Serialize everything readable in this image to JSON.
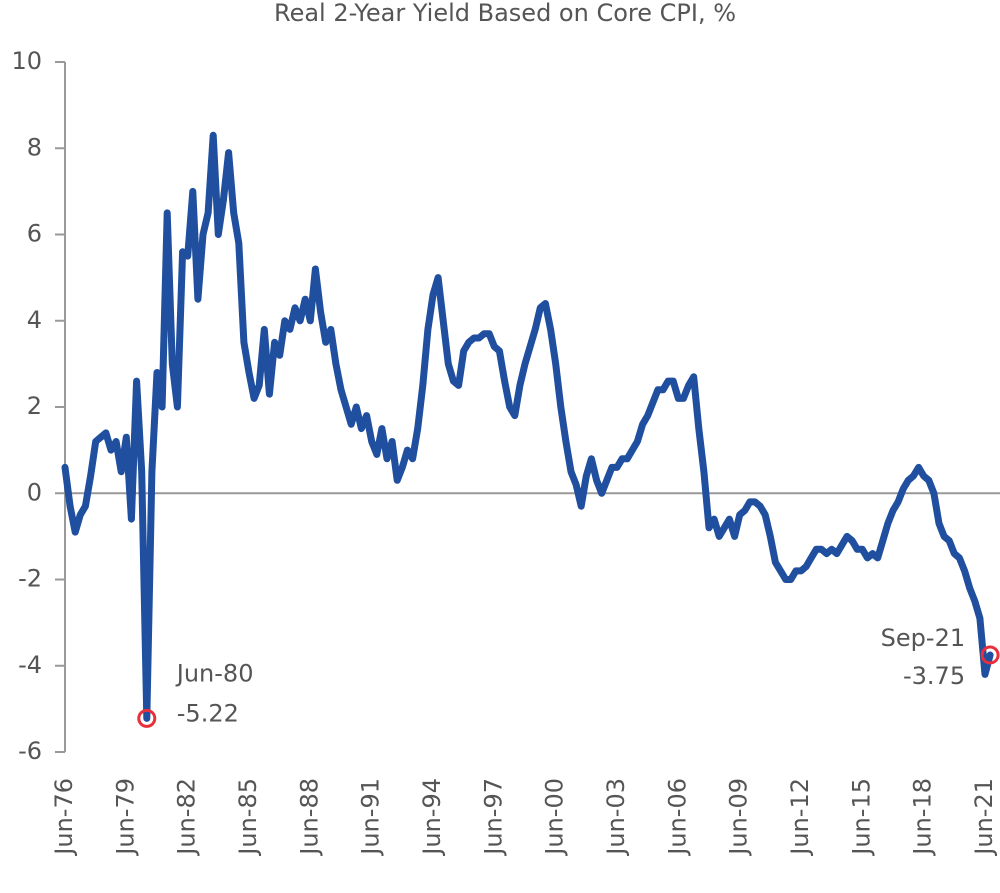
{
  "chart_data": {
    "type": "line",
    "title": "Real 2-Year Yield Based on Core CPI, %",
    "x": [
      "Jun-76",
      "Sep-76",
      "Dec-76",
      "Mar-77",
      "Jun-77",
      "Sep-77",
      "Dec-77",
      "Mar-78",
      "Jun-78",
      "Sep-78",
      "Dec-78",
      "Mar-79",
      "Jun-79",
      "Sep-79",
      "Dec-79",
      "Mar-80",
      "Jun-80",
      "Sep-80",
      "Dec-80",
      "Mar-81",
      "Jun-81",
      "Sep-81",
      "Dec-81",
      "Mar-82",
      "Jun-82",
      "Sep-82",
      "Dec-82",
      "Mar-83",
      "Jun-83",
      "Sep-83",
      "Dec-83",
      "Mar-84",
      "Jun-84",
      "Sep-84",
      "Dec-84",
      "Mar-85",
      "Jun-85",
      "Sep-85",
      "Dec-85",
      "Mar-86",
      "Jun-86",
      "Sep-86",
      "Dec-86",
      "Mar-87",
      "Jun-87",
      "Sep-87",
      "Dec-87",
      "Mar-88",
      "Jun-88",
      "Sep-88",
      "Dec-88",
      "Mar-89",
      "Jun-89",
      "Sep-89",
      "Dec-89",
      "Mar-90",
      "Jun-90",
      "Sep-90",
      "Dec-90",
      "Mar-91",
      "Jun-91",
      "Sep-91",
      "Dec-91",
      "Mar-92",
      "Jun-92",
      "Sep-92",
      "Dec-92",
      "Mar-93",
      "Jun-93",
      "Sep-93",
      "Dec-93",
      "Mar-94",
      "Jun-94",
      "Sep-94",
      "Dec-94",
      "Mar-95",
      "Jun-95",
      "Sep-95",
      "Dec-95",
      "Mar-96",
      "Jun-96",
      "Sep-96",
      "Dec-96",
      "Mar-97",
      "Jun-97",
      "Sep-97",
      "Dec-97",
      "Mar-98",
      "Jun-98",
      "Sep-98",
      "Dec-98",
      "Mar-99",
      "Jun-99",
      "Sep-99",
      "Dec-99",
      "Mar-00",
      "Jun-00",
      "Sep-00",
      "Dec-00",
      "Mar-01",
      "Jun-01",
      "Sep-01",
      "Dec-01",
      "Mar-02",
      "Jun-02",
      "Sep-02",
      "Dec-02",
      "Mar-03",
      "Jun-03",
      "Sep-03",
      "Dec-03",
      "Mar-04",
      "Jun-04",
      "Sep-04",
      "Dec-04",
      "Mar-05",
      "Jun-05",
      "Sep-05",
      "Dec-05",
      "Mar-06",
      "Jun-06",
      "Sep-06",
      "Dec-06",
      "Mar-07",
      "Jun-07",
      "Sep-07",
      "Dec-07",
      "Mar-08",
      "Jun-08",
      "Sep-08",
      "Dec-08",
      "Mar-09",
      "Jun-09",
      "Sep-09",
      "Dec-09",
      "Mar-10",
      "Jun-10",
      "Sep-10",
      "Dec-10",
      "Mar-11",
      "Jun-11",
      "Sep-11",
      "Dec-11",
      "Mar-12",
      "Jun-12",
      "Sep-12",
      "Dec-12",
      "Mar-13",
      "Jun-13",
      "Sep-13",
      "Dec-13",
      "Mar-14",
      "Jun-14",
      "Sep-14",
      "Dec-14",
      "Mar-15",
      "Jun-15",
      "Sep-15",
      "Dec-15",
      "Mar-16",
      "Jun-16",
      "Sep-16",
      "Dec-16",
      "Mar-17",
      "Jun-17",
      "Sep-17",
      "Dec-17",
      "Mar-18",
      "Jun-18",
      "Sep-18",
      "Dec-18",
      "Mar-19",
      "Jun-19",
      "Sep-19",
      "Dec-19",
      "Mar-20",
      "Jun-20",
      "Sep-20",
      "Dec-20",
      "Mar-21",
      "Jun-21",
      "Sep-21"
    ],
    "series": [
      {
        "color": "#1f4f9e",
        "values": [
          0.6,
          -0.3,
          -0.9,
          -0.5,
          -0.3,
          0.4,
          1.2,
          1.3,
          1.4,
          1.0,
          1.2,
          0.5,
          1.3,
          -0.6,
          2.6,
          0.5,
          -5.22,
          0.5,
          2.8,
          2.0,
          6.5,
          3.0,
          2.0,
          5.6,
          5.5,
          7.0,
          4.5,
          6.0,
          6.5,
          8.3,
          6.0,
          6.8,
          7.9,
          6.5,
          5.8,
          3.5,
          2.8,
          2.2,
          2.5,
          3.8,
          2.3,
          3.5,
          3.2,
          4.0,
          3.8,
          4.3,
          4.0,
          4.5,
          4.0,
          5.2,
          4.2,
          3.5,
          3.8,
          3.0,
          2.4,
          2.0,
          1.6,
          2.0,
          1.5,
          1.8,
          1.2,
          0.9,
          1.5,
          0.8,
          1.2,
          0.3,
          0.6,
          1.0,
          0.8,
          1.5,
          2.5,
          3.8,
          4.6,
          5.0,
          4.0,
          3.0,
          2.6,
          2.5,
          3.3,
          3.5,
          3.6,
          3.6,
          3.7,
          3.7,
          3.4,
          3.3,
          2.6,
          2.0,
          1.8,
          2.5,
          3.0,
          3.4,
          3.8,
          4.3,
          4.4,
          3.8,
          3.0,
          2.0,
          1.2,
          0.5,
          0.2,
          -0.3,
          0.4,
          0.8,
          0.3,
          0.0,
          0.3,
          0.6,
          0.6,
          0.8,
          0.8,
          1.0,
          1.2,
          1.6,
          1.8,
          2.1,
          2.4,
          2.4,
          2.6,
          2.6,
          2.2,
          2.2,
          2.5,
          2.7,
          1.5,
          0.5,
          -0.8,
          -0.6,
          -1.0,
          -0.8,
          -0.6,
          -1.0,
          -0.5,
          -0.4,
          -0.2,
          -0.2,
          -0.3,
          -0.5,
          -1.0,
          -1.6,
          -1.8,
          -2.0,
          -2.0,
          -1.8,
          -1.8,
          -1.7,
          -1.5,
          -1.3,
          -1.3,
          -1.4,
          -1.3,
          -1.4,
          -1.2,
          -1.0,
          -1.1,
          -1.3,
          -1.3,
          -1.5,
          -1.4,
          -1.5,
          -1.1,
          -0.7,
          -0.4,
          -0.2,
          0.1,
          0.3,
          0.4,
          0.6,
          0.4,
          0.3,
          0.0,
          -0.7,
          -1.0,
          -1.1,
          -1.4,
          -1.5,
          -1.8,
          -2.2,
          -2.5,
          -2.9,
          -4.2,
          -3.75
        ]
      }
    ],
    "ylim": [
      -6,
      10
    ],
    "yticks": [
      -6,
      -4,
      -2,
      0,
      2,
      4,
      6,
      8,
      10
    ],
    "annotations": [
      {
        "x": "Jun-80",
        "label": "-5.22"
      },
      {
        "x": "Sep-21",
        "label": "-3.75"
      }
    ],
    "marker_color": "#e8303c"
  }
}
